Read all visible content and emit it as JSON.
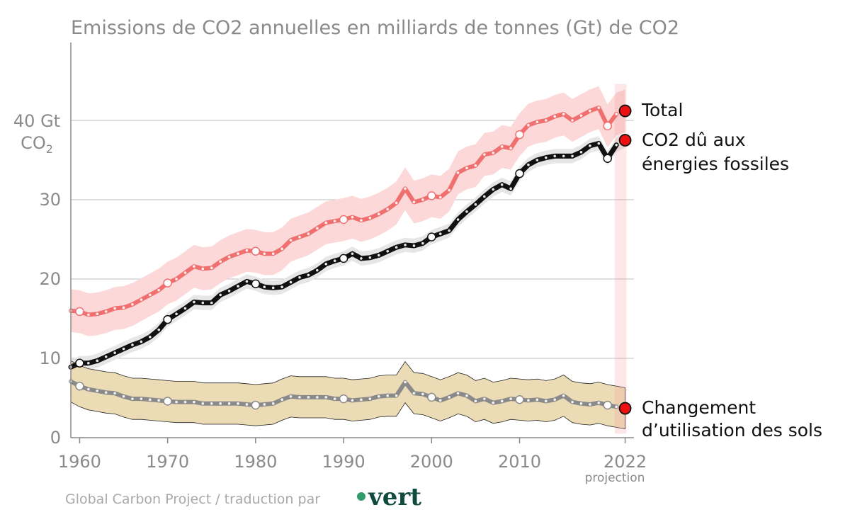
{
  "chart_data": {
    "type": "line",
    "title": "Emissions de CO2 annuelles en milliards de tonnes (Gt) de CO2",
    "ylabel_value": "40 Gt",
    "ylabel_unit_base": "CO",
    "ylabel_unit_sub": "2",
    "ylim": [
      0,
      50
    ],
    "xlim": [
      1959,
      2023
    ],
    "yticks": [
      0,
      10,
      20,
      30
    ],
    "xticks": [
      1960,
      1970,
      1980,
      1990,
      2000,
      2010,
      2022
    ],
    "xtick_labels": [
      "1960",
      "1970",
      "1980",
      "1990",
      "2000",
      "2010",
      "2022"
    ],
    "xtick_note": "projection",
    "grid": true,
    "source": "Global Carbon Project / traduction par",
    "logo": "vert",
    "years": [
      1959,
      1960,
      1961,
      1962,
      1963,
      1964,
      1965,
      1966,
      1967,
      1968,
      1969,
      1970,
      1971,
      1972,
      1973,
      1974,
      1975,
      1976,
      1977,
      1978,
      1979,
      1980,
      1981,
      1982,
      1983,
      1984,
      1985,
      1986,
      1987,
      1988,
      1989,
      1990,
      1991,
      1992,
      1993,
      1994,
      1995,
      1996,
      1997,
      1998,
      1999,
      2000,
      2001,
      2002,
      2003,
      2004,
      2005,
      2006,
      2007,
      2008,
      2009,
      2010,
      2011,
      2012,
      2013,
      2014,
      2015,
      2016,
      2017,
      2018,
      2019,
      2020,
      2021
    ],
    "series": [
      {
        "name": "Total",
        "color": "#f07070",
        "band_color": "#fcd8d8",
        "values": [
          16.0,
          15.9,
          15.5,
          15.6,
          15.9,
          16.3,
          16.4,
          16.8,
          17.4,
          18.0,
          18.6,
          19.5,
          20.0,
          20.8,
          21.6,
          21.3,
          21.4,
          22.2,
          22.8,
          23.2,
          23.6,
          23.5,
          23.2,
          23.2,
          23.8,
          24.9,
          25.3,
          25.7,
          26.4,
          27.1,
          27.3,
          27.5,
          27.8,
          27.4,
          27.7,
          28.2,
          28.8,
          29.6,
          31.4,
          29.7,
          30.0,
          30.5,
          30.3,
          31.2,
          33.4,
          34.0,
          34.3,
          35.7,
          35.9,
          36.7,
          36.5,
          38.2,
          39.4,
          39.8,
          40.0,
          40.5,
          40.8,
          40.0,
          40.6,
          41.2,
          41.6,
          39.3,
          40.8
        ],
        "uncertainty": 2.7,
        "projection": 41.2
      },
      {
        "name": "CO2 dû aux énergies fossiles",
        "name_line1": "CO2 dû aux",
        "name_line2": "énergies fossiles",
        "color": "#111111",
        "band_color": "#e6e6e6",
        "values": [
          8.9,
          9.4,
          9.4,
          9.7,
          10.2,
          10.7,
          11.2,
          11.7,
          12.1,
          12.7,
          13.6,
          14.9,
          15.6,
          16.3,
          17.1,
          17.0,
          17.0,
          18.0,
          18.5,
          19.1,
          19.7,
          19.4,
          19.0,
          18.9,
          19.0,
          19.6,
          20.2,
          20.5,
          21.1,
          21.9,
          22.3,
          22.6,
          23.2,
          22.6,
          22.7,
          23.0,
          23.5,
          24.0,
          24.3,
          24.2,
          24.5,
          25.3,
          25.7,
          26.1,
          27.5,
          28.5,
          29.4,
          30.4,
          31.3,
          31.9,
          31.4,
          33.3,
          34.4,
          35.0,
          35.3,
          35.5,
          35.5,
          35.5,
          36.0,
          36.8,
          37.1,
          35.2,
          36.9
        ],
        "uncertainty": 0.9,
        "projection": 37.5
      },
      {
        "name": "Changement d’utilisation des sols",
        "name_line1": "Changement",
        "name_line2": "d’utilisation des sols",
        "color": "#8a8a8a",
        "band_color": "#ecdcb6",
        "values": [
          7.1,
          6.5,
          6.1,
          5.9,
          5.7,
          5.6,
          5.2,
          4.9,
          4.9,
          4.8,
          4.7,
          4.6,
          4.5,
          4.5,
          4.5,
          4.3,
          4.3,
          4.3,
          4.3,
          4.3,
          4.2,
          4.1,
          4.2,
          4.3,
          4.8,
          5.2,
          5.1,
          5.1,
          5.1,
          5.1,
          4.9,
          4.9,
          4.7,
          4.8,
          4.9,
          5.2,
          5.3,
          5.3,
          7.0,
          5.6,
          5.5,
          5.1,
          4.7,
          5.1,
          5.6,
          5.3,
          4.6,
          4.9,
          4.4,
          4.6,
          4.9,
          4.8,
          4.7,
          4.8,
          4.6,
          4.8,
          5.3,
          4.5,
          4.3,
          4.2,
          4.4,
          4.1,
          3.9
        ],
        "uncertainty": 2.6,
        "projection": 3.7
      }
    ],
    "highlight_years": [
      1960,
      1970,
      1980,
      1990,
      2000,
      2010,
      2020
    ],
    "projection_year": 2022
  }
}
